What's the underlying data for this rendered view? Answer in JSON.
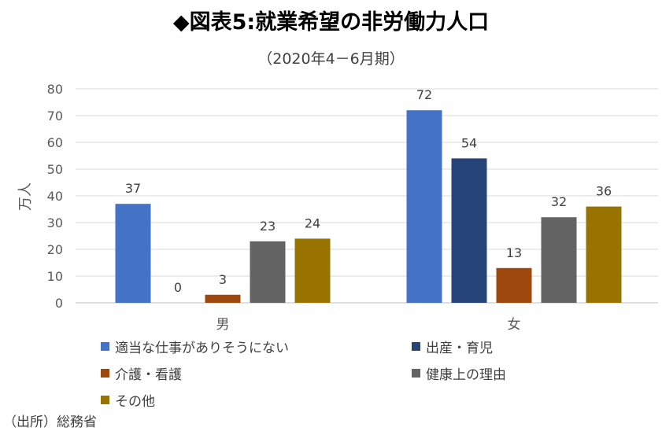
{
  "title": "◆図表5:就業希望の非労働力人口",
  "subtitle": "（2020年4－6月期）",
  "source": "（出所）総務省",
  "chart_data": {
    "type": "bar",
    "categories": [
      "男",
      "女"
    ],
    "ylabel": "万人",
    "ylim": [
      0,
      80
    ],
    "yticks": [
      0,
      10,
      20,
      30,
      40,
      50,
      60,
      70,
      80
    ],
    "grid": true,
    "legend_position": "bottom",
    "series": [
      {
        "name": "適当な仕事がありそうにない",
        "color": "#4472C4",
        "values": [
          37,
          72
        ]
      },
      {
        "name": "出産・育児",
        "color": "#264478",
        "values": [
          0,
          54
        ]
      },
      {
        "name": "介護・看護",
        "color": "#9E480E",
        "values": [
          3,
          13
        ]
      },
      {
        "name": "健康上の理由",
        "color": "#636363",
        "values": [
          23,
          32
        ]
      },
      {
        "name": "その他",
        "color": "#997300",
        "values": [
          24,
          36
        ]
      }
    ]
  }
}
